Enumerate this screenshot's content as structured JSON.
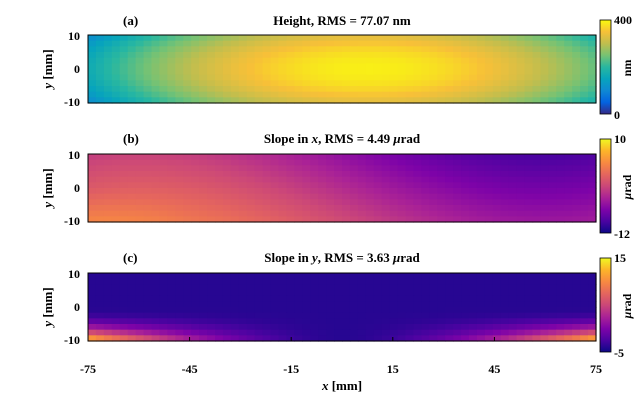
{
  "figure": {
    "x_axis": {
      "label_var": "x",
      "label_unit": " [mm]",
      "ticks": [
        "-75",
        "-45",
        "-15",
        "15",
        "45",
        "75"
      ],
      "tick_values": [
        -75,
        -45,
        -15,
        15,
        45,
        75
      ],
      "range": [
        -75,
        75
      ]
    }
  },
  "chart_data": [
    {
      "type": "heatmap",
      "panel_label": "(a)",
      "title": "Height, RMS = 77.07 nm",
      "ylabel_var": "y",
      "ylabel_unit": " [mm]",
      "yticks": [
        "10",
        "0",
        "-10"
      ],
      "ytick_values": [
        10,
        0,
        -10
      ],
      "xlim": [
        -75,
        75
      ],
      "ylim": [
        -10,
        10
      ],
      "colormap": "parula",
      "colorbar": {
        "min": 0,
        "max": 400,
        "ticks": [
          "400",
          "0"
        ],
        "label": "nm"
      },
      "z_min": 140,
      "z_max": 390
    },
    {
      "type": "heatmap",
      "panel_label": "(b)",
      "title_prefix": "Slope in ",
      "title_var": "x",
      "title_suffix": ", RMS = 4.49 ",
      "title_unit_mu": "μ",
      "title_unit_rest": "rad",
      "ylabel_var": "y",
      "ylabel_unit": " [mm]",
      "yticks": [
        "10",
        "0",
        "-10"
      ],
      "ytick_values": [
        10,
        0,
        -10
      ],
      "xlim": [
        -75,
        75
      ],
      "ylim": [
        -10,
        10
      ],
      "colormap": "plasma",
      "colorbar": {
        "min": -12,
        "max": 10,
        "ticks": [
          "10",
          "-12"
        ],
        "label_mu": "μ",
        "label_rest": "rad"
      },
      "z_min": -11,
      "z_max": 9
    },
    {
      "type": "heatmap",
      "panel_label": "(c)",
      "title_prefix": "Slope in ",
      "title_var": "y",
      "title_suffix": ", RMS = 3.63 ",
      "title_unit_mu": "μ",
      "title_unit_rest": "rad",
      "ylabel_var": "y",
      "ylabel_unit": " [mm]",
      "yticks": [
        "10",
        "0",
        "-10"
      ],
      "ytick_values": [
        10,
        0,
        -10
      ],
      "xlim": [
        -75,
        75
      ],
      "ylim": [
        -10,
        10
      ],
      "colormap": "plasma",
      "colorbar": {
        "min": -5,
        "max": 15,
        "ticks": [
          "15",
          "-5"
        ],
        "label_mu": "μ",
        "label_rest": "rad"
      },
      "z_min": -4.5,
      "z_max": 14
    }
  ]
}
